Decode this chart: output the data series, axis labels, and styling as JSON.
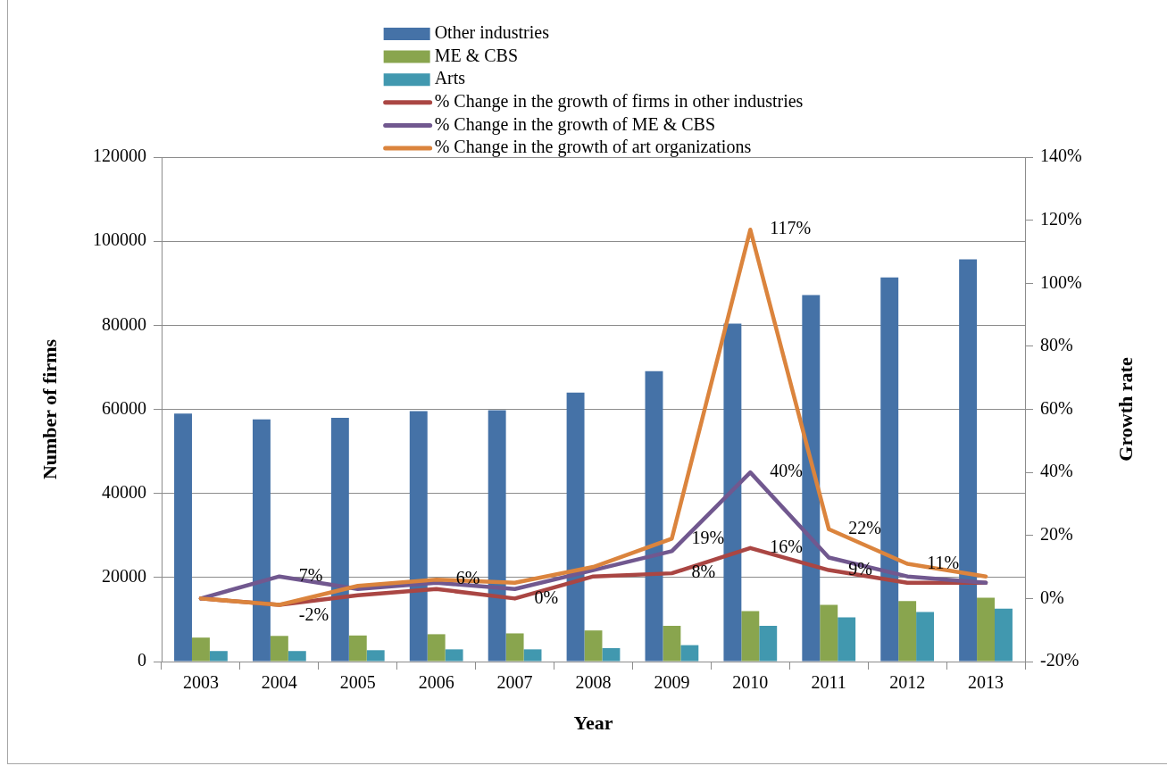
{
  "chart_data": {
    "type": "bar",
    "categories": [
      "2003",
      "2004",
      "2005",
      "2006",
      "2007",
      "2008",
      "2009",
      "2010",
      "2011",
      "2012",
      "2013"
    ],
    "xlabel": "Year",
    "ylabel": "Number of firms",
    "y2label": "Growth rate",
    "ylim": [
      0,
      120000
    ],
    "yticks": [
      0,
      20000,
      40000,
      60000,
      80000,
      100000,
      120000
    ],
    "y2lim": [
      -20,
      140
    ],
    "y2ticks": [
      {
        "value": -20,
        "label": "-20%"
      },
      {
        "value": 0,
        "label": "0%"
      },
      {
        "value": 20,
        "label": "20%"
      },
      {
        "value": 40,
        "label": "40%"
      },
      {
        "value": 60,
        "label": "60%"
      },
      {
        "value": 80,
        "label": "80%"
      },
      {
        "value": 100,
        "label": "100%"
      },
      {
        "value": 120,
        "label": "120%"
      },
      {
        "value": 140,
        "label": "140%"
      }
    ],
    "grid": "y",
    "legend": "top",
    "series": [
      {
        "name": "Other industries",
        "color": "#4572a7",
        "values": [
          59000,
          57600,
          58000,
          59600,
          59800,
          64000,
          69100,
          80400,
          87200,
          91400,
          95700
        ]
      },
      {
        "name": "ME & CBS",
        "color": "#89a54e",
        "values": [
          5700,
          6100,
          6200,
          6500,
          6700,
          7400,
          8500,
          12000,
          13500,
          14400,
          15200
        ]
      },
      {
        "name": "Arts",
        "color": "#4198af",
        "values": [
          2500,
          2500,
          2700,
          2900,
          2900,
          3200,
          3900,
          8500,
          10500,
          11800,
          12600
        ]
      },
      {
        "name": "% Change in the growth of firms in other industries",
        "type": "line",
        "axis": "y2",
        "color": "#aa4643",
        "values": [
          0,
          -2,
          1,
          3,
          0,
          7,
          8,
          16,
          9,
          5,
          5
        ],
        "value_labels": [
          null,
          "-2%",
          null,
          null,
          "0%",
          null,
          "8%",
          "16%",
          "9%",
          null,
          null
        ]
      },
      {
        "name": "% Change in the growth of ME & CBS",
        "type": "line",
        "axis": "y2",
        "color": "#71588f",
        "values": [
          0,
          7,
          3,
          5,
          3,
          9,
          15,
          40,
          13,
          7,
          5
        ],
        "value_labels": [
          null,
          "7%",
          null,
          null,
          null,
          null,
          null,
          "40%",
          null,
          null,
          null
        ]
      },
      {
        "name": "% Change in the growth of art organizations",
        "type": "line",
        "axis": "y2",
        "color": "#db843d",
        "values": [
          0,
          -2,
          4,
          6,
          5,
          10,
          19,
          117,
          22,
          11,
          7
        ],
        "value_labels": [
          null,
          null,
          null,
          "6%",
          null,
          null,
          "19%",
          "117%",
          "22%",
          "11%",
          null
        ]
      }
    ]
  }
}
